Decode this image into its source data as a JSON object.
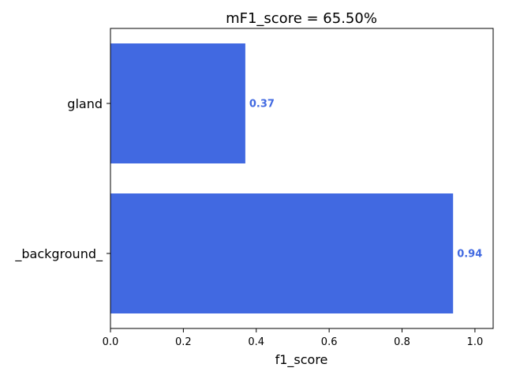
{
  "chart_data": {
    "type": "bar",
    "orientation": "horizontal",
    "title": "mF1_score = 65.50%",
    "xlabel": "f1_score",
    "ylabel": "",
    "categories": [
      "gland",
      "_background_"
    ],
    "values": [
      0.37,
      0.94
    ],
    "data_labels": [
      "0.37",
      "0.94"
    ],
    "xlim": [
      0.0,
      1.05
    ],
    "xticks": [
      0.0,
      0.2,
      0.4,
      0.6,
      0.8,
      1.0
    ],
    "xtick_labels": [
      "0.0",
      "0.2",
      "0.4",
      "0.6",
      "0.8",
      "1.0"
    ],
    "grid": false,
    "bar_color": "#4169e1",
    "label_color": "#4169e1"
  }
}
